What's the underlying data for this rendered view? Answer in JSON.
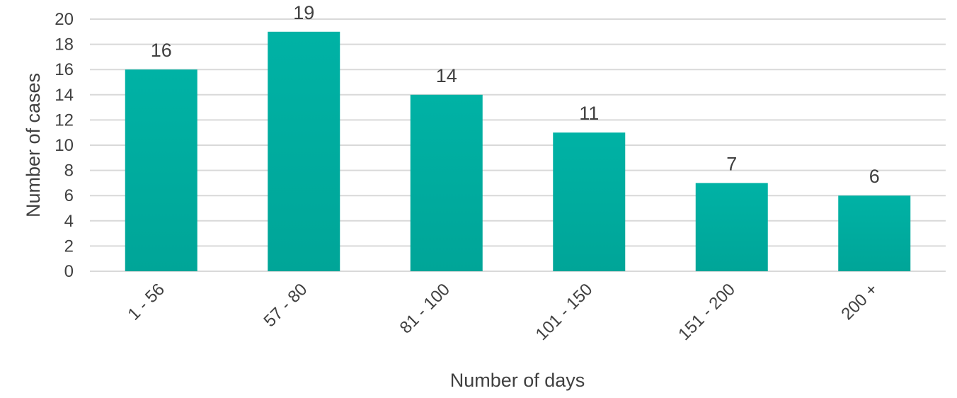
{
  "chart_data": {
    "type": "bar",
    "categories": [
      "1 - 56",
      "57 - 80",
      "81 - 100",
      "101 - 150",
      "151 - 200",
      "200 +"
    ],
    "values": [
      16,
      19,
      14,
      11,
      7,
      6
    ],
    "xlabel": "Number of days",
    "ylabel": "Number of cases",
    "ylim": [
      0,
      20
    ],
    "yticks": [
      0,
      2,
      4,
      6,
      8,
      10,
      12,
      14,
      16,
      18,
      20
    ],
    "grid": true,
    "data_labels": true,
    "bar_color": "#00b2a5",
    "bar_color_bottom": "#00a598"
  }
}
